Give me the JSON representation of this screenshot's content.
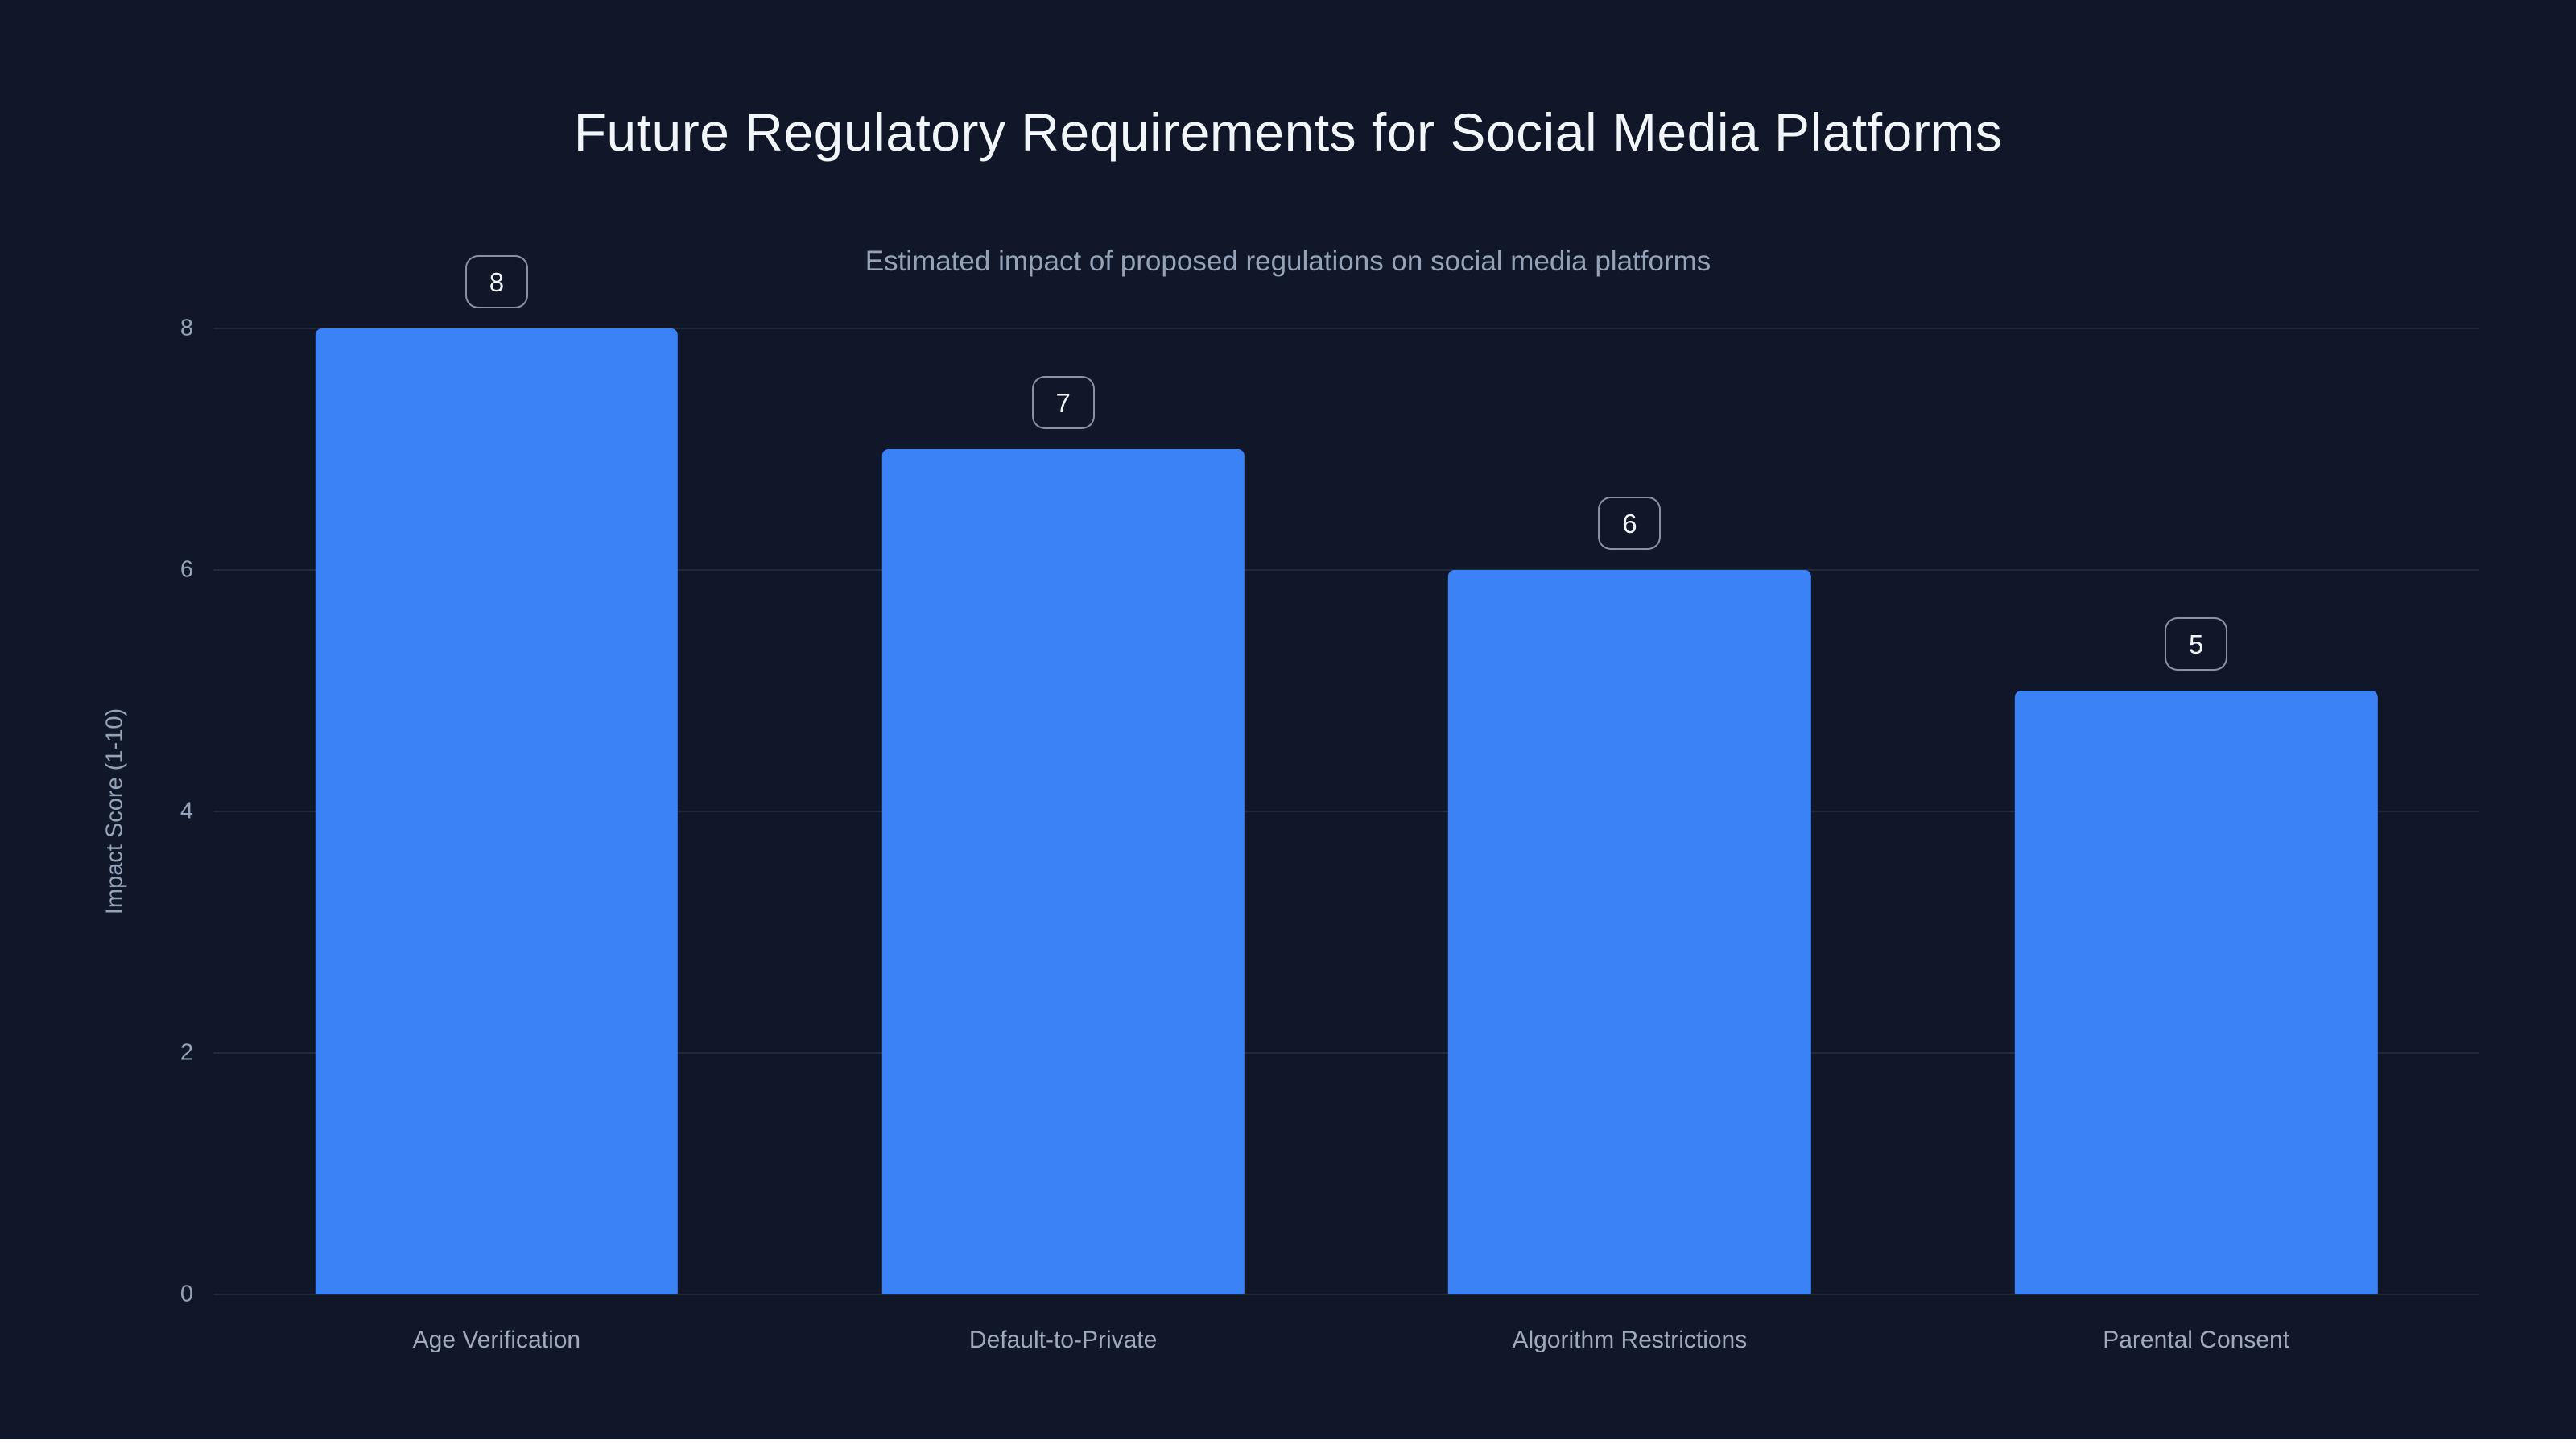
{
  "chart_data": {
    "type": "bar",
    "title": "Future Regulatory Requirements for Social Media Platforms",
    "subtitle": "Estimated impact of proposed regulations on social media platforms",
    "categories": [
      "Age Verification",
      "Default-to-Private",
      "Algorithm Restrictions",
      "Parental Consent"
    ],
    "values": [
      8,
      7,
      6,
      5
    ],
    "xlabel": "",
    "ylabel": "Impact Score (1-10)",
    "ylim": [
      0,
      8
    ],
    "yticks": [
      0,
      2,
      4,
      6,
      8
    ],
    "grid": true,
    "legend": false,
    "colors": {
      "background": "#0f1728",
      "bar": "#3b82f6",
      "title": "#f2f5f9",
      "subtitle": "#94a3b8",
      "axis_text": "#94a3b8",
      "gridline": "rgba(148,163,184,0.14)",
      "badge_border": "rgba(203,213,225,0.65)",
      "badge_text": "#f2f5f9"
    }
  }
}
